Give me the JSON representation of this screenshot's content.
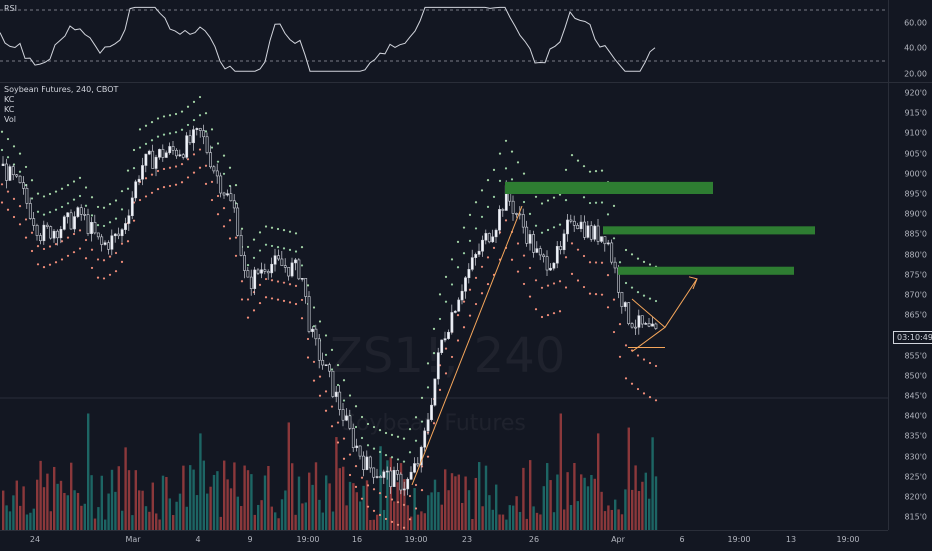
{
  "rsi": {
    "label": "RSI",
    "ticks": [
      "60.00",
      "40.00",
      "20.00"
    ],
    "levels": [
      70,
      30
    ]
  },
  "main": {
    "legend": {
      "symbol": "Soybean Futures, 240, CBOT",
      "ind1": "KC",
      "ind2": "KC",
      "ind3": "Vol"
    },
    "watermark_symbol": "ZS1!, 240",
    "watermark_name": "Soybean Futures",
    "current_price_countdown": "03:10:49"
  },
  "price_axis": [
    "920'0",
    "915'0",
    "910'0",
    "905'0",
    "900'0",
    "895'0",
    "890'0",
    "885'0",
    "880'0",
    "875'0",
    "870'0",
    "865'0",
    "860'0",
    "855'0",
    "850'0",
    "845'0",
    "840'0",
    "835'0",
    "830'0",
    "825'0",
    "820'0",
    "815'0"
  ],
  "time_axis": [
    "24",
    "Mar",
    "4",
    "9",
    "19:00",
    "16",
    "19:00",
    "23",
    "26",
    "Apr",
    "6",
    "19:00",
    "13",
    "19:00"
  ],
  "colors": {
    "bull": "#26a69a",
    "bear": "#ef5350",
    "zone": "#2e7d32",
    "drawing": "#f5a65b",
    "kc_upper": "#a5d6a7",
    "kc_lower": "#f48f7b"
  },
  "chart_data": {
    "type": "candlestick",
    "price_ylim": [
      812,
      922
    ],
    "rsi_ylim": [
      15,
      75
    ],
    "resistance_zones": [
      [
        895,
        898
      ],
      [
        885,
        887
      ],
      [
        875,
        877
      ]
    ]
  }
}
